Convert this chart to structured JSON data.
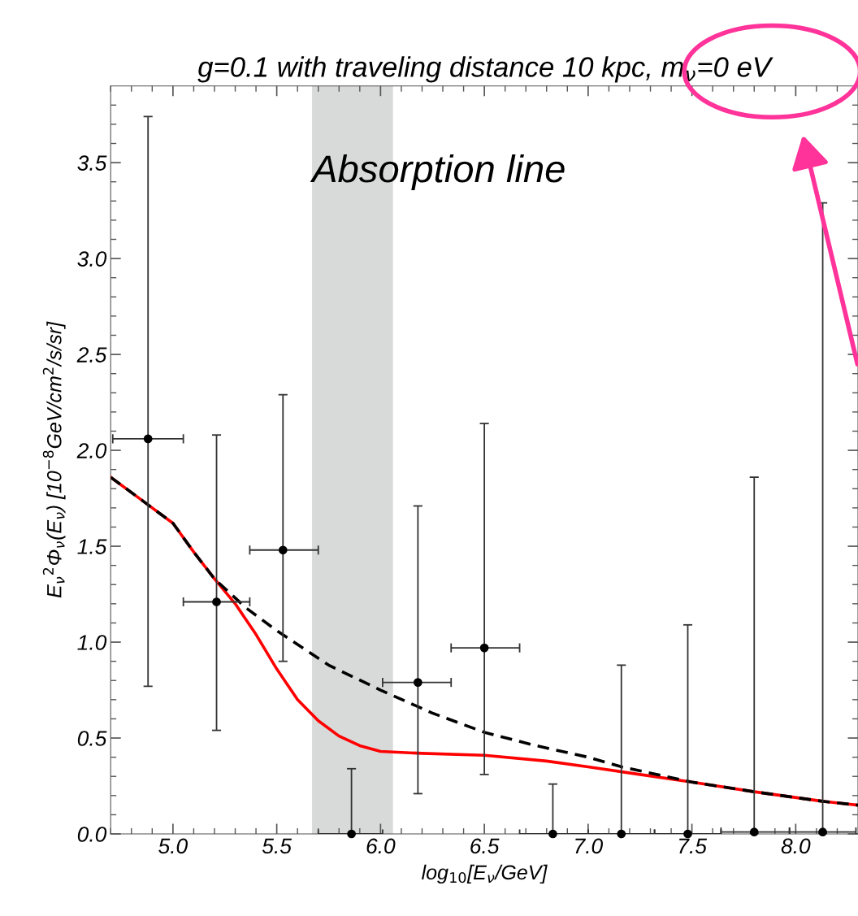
{
  "chart_data": {
    "type": "scatter",
    "title": "g=0.1 with traveling distance 10 kpc, m$_{ν}$=0 eV",
    "xlabel": "log$_{10}$[E$_{ν}$/GeV]",
    "ylabel": "E$_{ν}$$^{2}$Φ$_{ν}$(E$_{ν}$) [10$^{−8}$GeV/cm$^{2}$/s/sr]",
    "xlim": [
      4.7,
      8.3
    ],
    "ylim": [
      0,
      3.9
    ],
    "xticks": [
      {
        "value": 4.7,
        "label": null
      },
      {
        "value": 4.8,
        "label": null
      },
      {
        "value": 4.9,
        "label": null
      },
      {
        "value": 5.0,
        "label": "5.0"
      },
      {
        "value": 5.1,
        "label": null
      },
      {
        "value": 5.2,
        "label": null
      },
      {
        "value": 5.3,
        "label": null
      },
      {
        "value": 5.4,
        "label": null
      },
      {
        "value": 5.5,
        "label": "5.5"
      },
      {
        "value": 5.6,
        "label": null
      },
      {
        "value": 5.7,
        "label": null
      },
      {
        "value": 5.8,
        "label": null
      },
      {
        "value": 5.9,
        "label": null
      },
      {
        "value": 6.0,
        "label": "6.0"
      },
      {
        "value": 6.1,
        "label": null
      },
      {
        "value": 6.2,
        "label": null
      },
      {
        "value": 6.3,
        "label": null
      },
      {
        "value": 6.4,
        "label": null
      },
      {
        "value": 6.5,
        "label": "6.5"
      },
      {
        "value": 6.6,
        "label": null
      },
      {
        "value": 6.7,
        "label": null
      },
      {
        "value": 6.8,
        "label": null
      },
      {
        "value": 6.9,
        "label": null
      },
      {
        "value": 7.0,
        "label": "7.0"
      },
      {
        "value": 7.1,
        "label": null
      },
      {
        "value": 7.2,
        "label": null
      },
      {
        "value": 7.3,
        "label": null
      },
      {
        "value": 7.4,
        "label": null
      },
      {
        "value": 7.5,
        "label": "7.5"
      },
      {
        "value": 7.6,
        "label": null
      },
      {
        "value": 7.7,
        "label": null
      },
      {
        "value": 7.8,
        "label": null
      },
      {
        "value": 7.9,
        "label": null
      },
      {
        "value": 8.0,
        "label": "8.0"
      },
      {
        "value": 8.1,
        "label": null
      },
      {
        "value": 8.2,
        "label": null
      }
    ],
    "yticks": [
      {
        "value": 0.0,
        "label": "0.0"
      },
      {
        "value": 0.1,
        "label": null
      },
      {
        "value": 0.2,
        "label": null
      },
      {
        "value": 0.3,
        "label": null
      },
      {
        "value": 0.4,
        "label": null
      },
      {
        "value": 0.5,
        "label": "0.5"
      },
      {
        "value": 0.6,
        "label": null
      },
      {
        "value": 0.7,
        "label": null
      },
      {
        "value": 0.8,
        "label": null
      },
      {
        "value": 0.9,
        "label": null
      },
      {
        "value": 1.0,
        "label": "1.0"
      },
      {
        "value": 1.1,
        "label": null
      },
      {
        "value": 1.2,
        "label": null
      },
      {
        "value": 1.3,
        "label": null
      },
      {
        "value": 1.4,
        "label": null
      },
      {
        "value": 1.5,
        "label": "1.5"
      },
      {
        "value": 1.6,
        "label": null
      },
      {
        "value": 1.7,
        "label": null
      },
      {
        "value": 1.8,
        "label": null
      },
      {
        "value": 1.9,
        "label": null
      },
      {
        "value": 2.0,
        "label": "2.0"
      },
      {
        "value": 2.1,
        "label": null
      },
      {
        "value": 2.2,
        "label": null
      },
      {
        "value": 2.3,
        "label": null
      },
      {
        "value": 2.4,
        "label": null
      },
      {
        "value": 2.5,
        "label": "2.5"
      },
      {
        "value": 2.6,
        "label": null
      },
      {
        "value": 2.7,
        "label": null
      },
      {
        "value": 2.8,
        "label": null
      },
      {
        "value": 2.9,
        "label": null
      },
      {
        "value": 3.0,
        "label": "3.0"
      },
      {
        "value": 3.1,
        "label": null
      },
      {
        "value": 3.2,
        "label": null
      },
      {
        "value": 3.3,
        "label": null
      },
      {
        "value": 3.4,
        "label": null
      },
      {
        "value": 3.5,
        "label": "3.5"
      },
      {
        "value": 3.6,
        "label": null
      },
      {
        "value": 3.7,
        "label": null
      },
      {
        "value": 3.8,
        "label": null
      }
    ],
    "grid": false,
    "legend": false,
    "bands": [
      {
        "axis": "x",
        "from": 5.67,
        "to": 6.06,
        "label": "Absorption line",
        "color": "#d8dada"
      }
    ],
    "series": [
      {
        "type": "line",
        "color": "#ff0000",
        "line_style": "solid",
        "marker": "none",
        "x": [
          4.7,
          4.85,
          5.0,
          5.1,
          5.2,
          5.3,
          5.4,
          5.5,
          5.6,
          5.7,
          5.8,
          5.9,
          6.0,
          6.2,
          6.5,
          6.8,
          7.0,
          7.25,
          7.5,
          7.8,
          8.13,
          8.3
        ],
        "values": [
          1.86,
          1.74,
          1.62,
          1.47,
          1.33,
          1.2,
          1.04,
          0.86,
          0.7,
          0.59,
          0.51,
          0.46,
          0.43,
          0.42,
          0.41,
          0.38,
          0.35,
          0.31,
          0.27,
          0.22,
          0.17,
          0.15
        ]
      },
      {
        "type": "line",
        "color": "#000000",
        "line_style": "dashed",
        "marker": "none",
        "x": [
          4.7,
          4.85,
          5.0,
          5.1,
          5.2,
          5.35,
          5.5,
          5.75,
          6.0,
          6.25,
          6.5,
          6.75,
          7.0,
          7.16,
          7.5,
          7.8,
          8.13,
          8.3
        ],
        "values": [
          1.86,
          1.74,
          1.62,
          1.47,
          1.33,
          1.18,
          1.06,
          0.88,
          0.75,
          0.63,
          0.53,
          0.46,
          0.4,
          0.35,
          0.27,
          0.22,
          0.17,
          0.15
        ]
      },
      {
        "color": "#000000",
        "marker": "circle",
        "x": [
          4.88,
          5.21,
          5.53,
          5.86,
          6.18,
          6.5,
          6.83,
          7.16,
          7.48,
          7.8,
          8.13
        ],
        "values": [
          2.06,
          1.21,
          1.48,
          0,
          0.79,
          0.97,
          0,
          0,
          0,
          0.01,
          0.01
        ],
        "errors": [
          [
            0.77,
            3.74
          ],
          [
            0.54,
            2.08
          ],
          [
            0.9,
            2.29
          ],
          [
            0,
            0.34
          ],
          [
            0.21,
            1.71
          ],
          [
            0.31,
            2.14
          ],
          [
            0,
            0.26
          ],
          [
            0,
            0.88
          ],
          [
            0,
            1.09
          ],
          [
            0,
            1.86
          ],
          [
            0,
            3.29
          ]
        ],
        "xerrors": [
          [
            4.71,
            5.05
          ],
          [
            5.05,
            5.37
          ],
          [
            5.37,
            5.7
          ],
          [
            5.7,
            6.01
          ],
          [
            6.01,
            6.34
          ],
          [
            6.34,
            6.67
          ],
          [
            6.67,
            7.0
          ],
          [
            7.0,
            7.32
          ],
          [
            7.32,
            7.64
          ],
          [
            7.64,
            7.97
          ],
          [
            7.97,
            8.29
          ]
        ]
      }
    ]
  }
}
